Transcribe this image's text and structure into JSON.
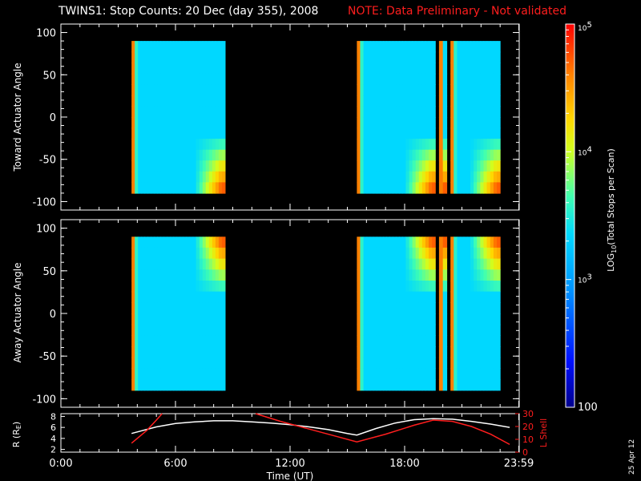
{
  "title": "TWINS1: Stop Counts: 20 Dec (day 355), 2008",
  "note": "NOTE: Data Preliminary - Not validated",
  "date_stamp": "25 Apr 12",
  "colorbar": {
    "label": "LOG10(Total Stops per Scan)",
    "tick_labels": [
      "10^5",
      "10^4",
      "10^3",
      "100"
    ],
    "range": [
      100,
      100000
    ]
  },
  "colors": {
    "note": "#ff1e1e",
    "background": "#000000",
    "foreground": "#ffffff"
  },
  "chart_data": [
    {
      "type": "heatmap",
      "title": "",
      "ylabel": "Toward Actuator Angle",
      "xlim_hours": [
        0,
        24
      ],
      "ylim": [
        -110,
        110
      ],
      "y_ticks": [
        100,
        50,
        0,
        -50,
        -100
      ],
      "data_intervals_hours": [
        [
          3.7,
          8.6
        ],
        [
          15.5,
          19.6
        ],
        [
          19.8,
          20.2
        ],
        [
          20.4,
          23.0
        ]
      ],
      "angle_range": [
        -90,
        90
      ],
      "description_levels": {
        "log_min": 2,
        "log_max": 5
      }
    },
    {
      "type": "heatmap",
      "title": "",
      "ylabel": "Away Actuator Angle",
      "xlim_hours": [
        0,
        24
      ],
      "ylim": [
        -110,
        110
      ],
      "y_ticks": [
        100,
        50,
        0,
        -50,
        -100
      ],
      "data_intervals_hours": [
        [
          3.7,
          8.6
        ],
        [
          15.5,
          19.6
        ],
        [
          19.8,
          20.2
        ],
        [
          20.4,
          23.0
        ]
      ],
      "angle_range": [
        -90,
        90
      ]
    },
    {
      "type": "line",
      "xlabel": "Time (UT)",
      "x_tick_labels": [
        "0:00",
        "6:00",
        "12:00",
        "18:00",
        "23:59"
      ],
      "x_ticks_hours": [
        0,
        6,
        12,
        18,
        23.98
      ],
      "left_axis": {
        "label": "R (RE)",
        "ylim": [
          1.5,
          8.5
        ],
        "ticks": [
          2,
          4,
          6,
          8
        ]
      },
      "right_axis": {
        "label": "L Shell",
        "ylim": [
          0,
          30
        ],
        "ticks": [
          0,
          10,
          20,
          30
        ],
        "color": "#ff1e1e"
      },
      "series": [
        {
          "axis": "left",
          "color": "#ffffff",
          "x": [
            3.7,
            5.0,
            6.0,
            7.0,
            8.0,
            9.0,
            10.0,
            11.0,
            12.0,
            13.0,
            14.0,
            15.0,
            15.5,
            16.5,
            17.5,
            18.5,
            19.5,
            20.5,
            21.5,
            22.5,
            23.5
          ],
          "y": [
            4.9,
            6.1,
            6.7,
            7.0,
            7.2,
            7.2,
            7.0,
            6.8,
            6.5,
            6.1,
            5.6,
            4.9,
            4.6,
            5.8,
            6.8,
            7.4,
            7.6,
            7.5,
            7.1,
            6.6,
            6.0
          ]
        },
        {
          "axis": "right",
          "color": "#ff1e1e",
          "segments": [
            {
              "x": [
                3.7,
                4.5,
                5.0,
                5.3
              ],
              "y": [
                7,
                17,
                25,
                30
              ]
            },
            {
              "x": [
                10.2,
                11.5,
                13.0,
                14.5,
                15.5,
                17.0,
                18.5,
                19.5,
                20.5,
                21.5,
                22.5,
                23.5
              ],
              "y": [
                30,
                24,
                18,
                12,
                8,
                14,
                21,
                25,
                24,
                20,
                14,
                6
              ]
            }
          ]
        }
      ]
    }
  ]
}
